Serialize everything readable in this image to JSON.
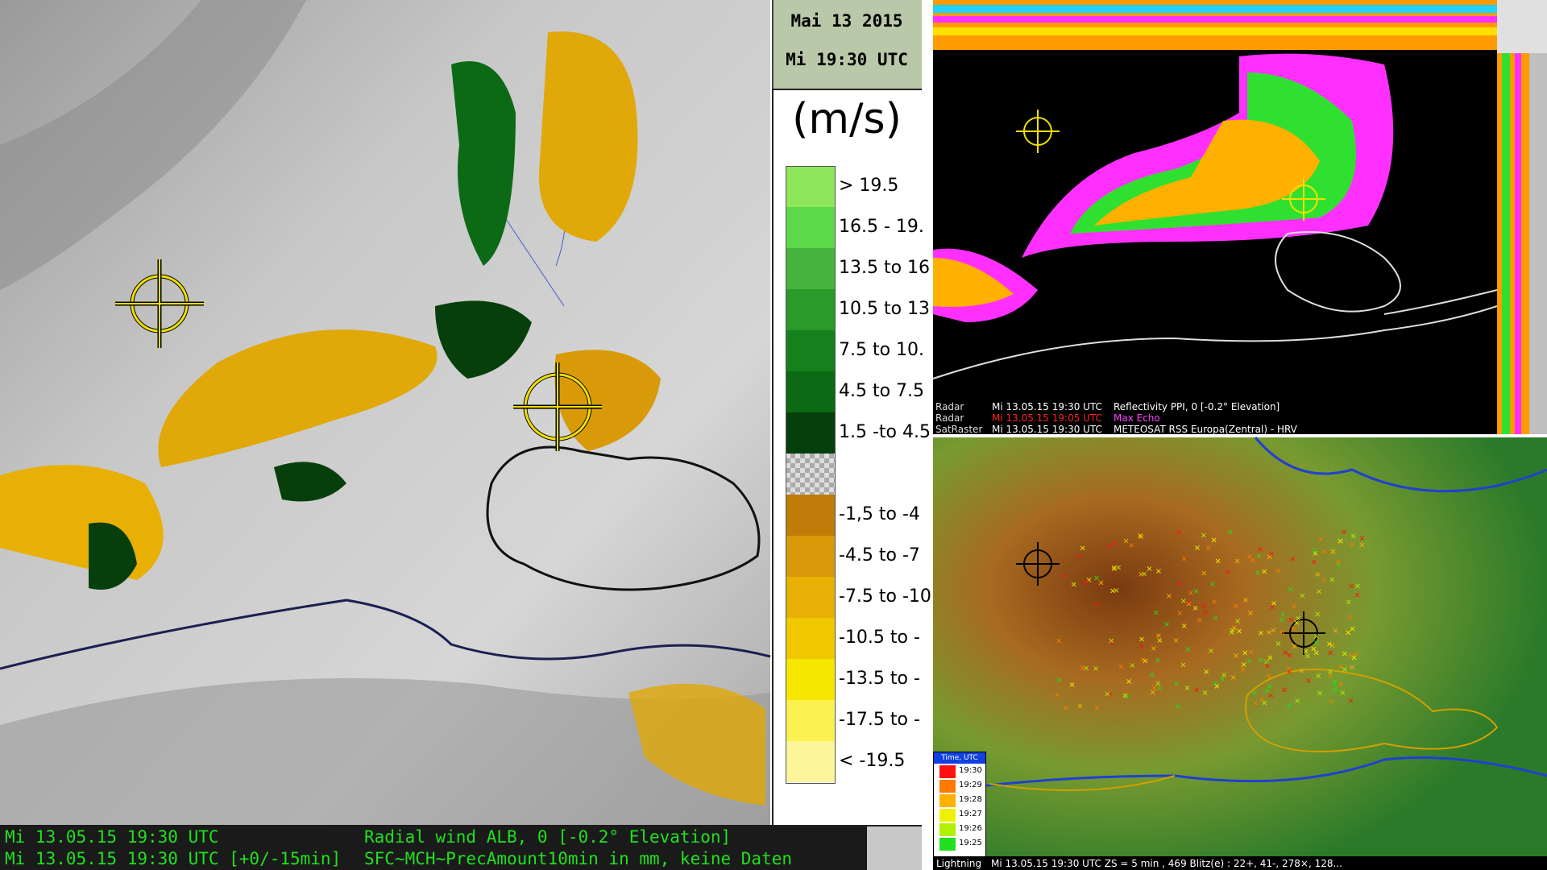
{
  "left_map": {
    "date": "Mai 13 2015",
    "time": "Mi 19:30 UTC",
    "unit": "(m/s)",
    "legend_positive": [
      {
        "label": "> 19.5",
        "color": "#8ee65a"
      },
      {
        "label": "16.5 - 19.",
        "color": "#5cd84a"
      },
      {
        "label": "13.5 to 16",
        "color": "#45b43c"
      },
      {
        "label": "10.5 to 13",
        "color": "#2a9a2a"
      },
      {
        "label": "7.5 to 10.",
        "color": "#15811c"
      },
      {
        "label": "4.5 to 7.5",
        "color": "#0c6a14"
      },
      {
        "label": "1.5 -to 4.5",
        "color": "#063f0b"
      }
    ],
    "legend_negative": [
      {
        "label": "-1,5 to -4",
        "color": "#c07c08"
      },
      {
        "label": "-4.5 to -7",
        "color": "#d89a08"
      },
      {
        "label": "-7.5 to -10",
        "color": "#e8b004"
      },
      {
        "label": "-10.5 to -",
        "color": "#f0c800"
      },
      {
        "label": "-13.5 to -",
        "color": "#f6e600"
      },
      {
        "label": "-17.5 to -",
        "color": "#fbf250"
      },
      {
        "label": "< -19.5",
        "color": "#fdf59a"
      }
    ],
    "status": [
      {
        "time": "Mi 13.05.15 19:30 UTC",
        "product": "Radial wind ALB, 0 [-0.2° Elevation]"
      },
      {
        "time": "Mi 13.05.15 19:30 UTC [+0/-15min]",
        "product": "SFC~MCH~PrecAmount10min in mm, keine Daten"
      }
    ]
  },
  "radar_panel": {
    "rows": [
      {
        "source": "Radar",
        "time": "Mi 13.05.15 19:30 UTC",
        "product": "Reflectivity  PPI, 0  [-0.2° Elevation]",
        "color": "#ffffff"
      },
      {
        "source": "Radar",
        "time": "Mi 13.05.15 19:05 UTC",
        "product": "Max Echo",
        "color": "#ff2020"
      },
      {
        "source": "SatRaster",
        "time": "Mi 13.05.15 19:30 UTC",
        "product": "METEOSAT RSS Europa(Zentral) - HRV",
        "color": "#ffffff"
      }
    ]
  },
  "lightning_panel": {
    "legend_title": "Time, UTC",
    "legend": [
      {
        "label": "19:30",
        "color": "#ff1010"
      },
      {
        "label": "19:29",
        "color": "#ff7a00"
      },
      {
        "label": "19:28",
        "color": "#ffb000"
      },
      {
        "label": "19:27",
        "color": "#f0f000"
      },
      {
        "label": "19:26",
        "color": "#b0f000"
      },
      {
        "label": "19:25",
        "color": "#20e020"
      }
    ],
    "status": {
      "source": "Lightning",
      "text": "Mi 13.05.15 19:30 UTC  ZS = 5 min , 469 Blitz(e) : 22+, 41-, 278×, 128..."
    }
  }
}
